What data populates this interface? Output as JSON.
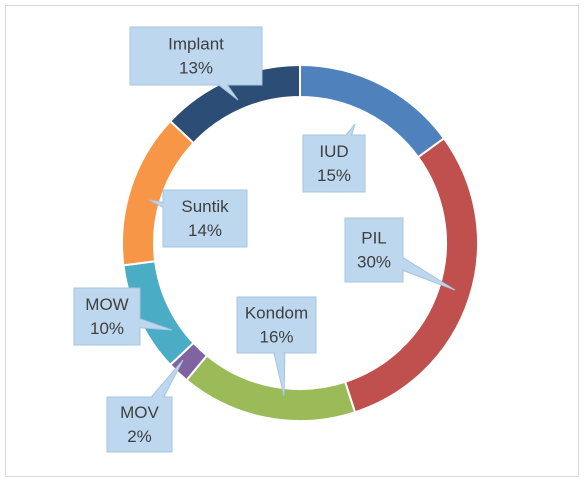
{
  "chart_data": {
    "type": "donut",
    "categories": [
      "IUD",
      "PIL",
      "Kondom",
      "MOV",
      "MOW",
      "Suntik",
      "Implant"
    ],
    "values": [
      15,
      30,
      16,
      2,
      10,
      14,
      13
    ],
    "value_labels": [
      "15%",
      "30%",
      "16%",
      "2%",
      "10%",
      "14%",
      "13%"
    ],
    "colors": [
      "#4f81bd",
      "#c0504d",
      "#9bbb59",
      "#8064a2",
      "#4bacc6",
      "#f79646",
      "#2c4d75"
    ]
  }
}
